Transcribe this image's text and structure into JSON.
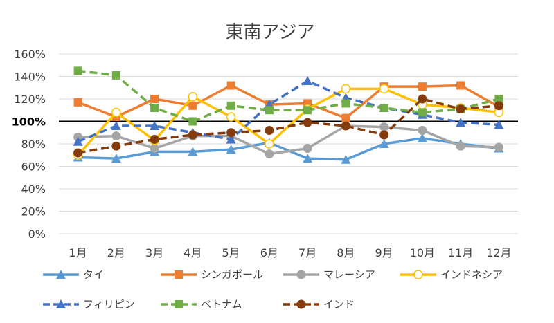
{
  "chart_data": {
    "type": "line",
    "title": "東南アジア",
    "categories": [
      "1月",
      "2月",
      "3月",
      "4月",
      "5月",
      "6月",
      "7月",
      "8月",
      "9月",
      "10月",
      "11月",
      "12月"
    ],
    "y_ticks": [
      "0%",
      "20%",
      "40%",
      "60%",
      "80%",
      "100%",
      "120%",
      "140%",
      "160%"
    ],
    "ylim": [
      0,
      160
    ],
    "reference_line": 100,
    "grid": true,
    "legend_position": "bottom",
    "series": [
      {
        "name": "タイ",
        "color": "#5B9BD5",
        "dash": "solid",
        "marker": "triangle",
        "values": [
          68,
          67,
          73,
          73,
          75,
          81,
          67,
          66,
          80,
          85,
          80,
          76
        ]
      },
      {
        "name": "シンガポール",
        "color": "#ED7D31",
        "dash": "solid",
        "marker": "square",
        "values": [
          117,
          104,
          120,
          114,
          132,
          115,
          116,
          103,
          131,
          131,
          132,
          113
        ]
      },
      {
        "name": "マレーシア",
        "color": "#A5A5A5",
        "dash": "solid",
        "marker": "circle",
        "values": [
          86,
          87,
          76,
          87,
          87,
          71,
          76,
          96,
          95,
          92,
          78,
          77
        ]
      },
      {
        "name": "インドネシア",
        "color": "#FFC000",
        "dash": "solid",
        "marker": "circle-open",
        "values": [
          70,
          108,
          83,
          122,
          104,
          80,
          111,
          129,
          129,
          115,
          112,
          108
        ]
      },
      {
        "name": "フィリピン",
        "color": "#4472C4",
        "dash": "dash",
        "marker": "triangle",
        "values": [
          82,
          96,
          96,
          90,
          84,
          115,
          136,
          121,
          112,
          106,
          99,
          97
        ]
      },
      {
        "name": "ベトナム",
        "color": "#70AD47",
        "dash": "dash",
        "marker": "square",
        "values": [
          145,
          141,
          112,
          100,
          114,
          110,
          110,
          116,
          112,
          108,
          111,
          120
        ]
      },
      {
        "name": "インド",
        "color": "#843C0C",
        "dash": "dash",
        "marker": "circle",
        "values": [
          72,
          78,
          84,
          88,
          90,
          92,
          99,
          96,
          88,
          120,
          111,
          114
        ]
      }
    ]
  }
}
